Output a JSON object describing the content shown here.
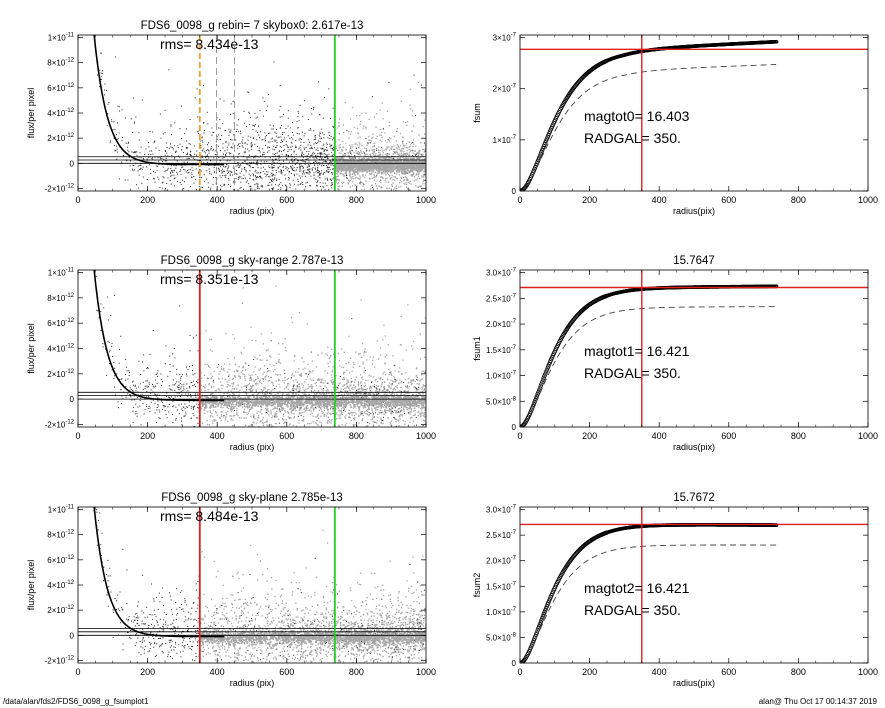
{
  "footer": {
    "left": "/data/alan/fds2/FDS6_0098_g_fsumplot1",
    "right": "alan@  Thu Oct 17 00:14:37 2019"
  },
  "colors": {
    "scatter_dark": "#222222",
    "scatter_light": "#a6a6a6",
    "red_line": "#e02020",
    "green_line": "#22cc22",
    "orange_line": "#f0a030",
    "dashed_gray": "#888888"
  },
  "chart_data": [
    {
      "type": "scatter",
      "title": "FDS6_0098_g rebin= 7    skybox0:  2.617e-13",
      "annotation": "rms= 8.434e-13",
      "xlabel": "radius (pix)",
      "ylabel": "flux/per pixel",
      "xlim": [
        0,
        1000
      ],
      "ylim": [
        -2.2e-12,
        1.02e-11
      ],
      "xticks": [
        {
          "v": 0,
          "t": "0"
        },
        {
          "v": 200,
          "t": "200"
        },
        {
          "v": 400,
          "t": "400"
        },
        {
          "v": 600,
          "t": "600"
        },
        {
          "v": 800,
          "t": "800"
        },
        {
          "v": 1000,
          "t": "1000"
        }
      ],
      "yticks": [
        {
          "v": -2e-12,
          "t": "-2×10",
          "e": "-12"
        },
        {
          "v": 0,
          "t": "0",
          "e": ""
        },
        {
          "v": 2e-12,
          "t": "2×10",
          "e": "-12"
        },
        {
          "v": 4e-12,
          "t": "4×10",
          "e": "-12"
        },
        {
          "v": 6e-12,
          "t": "6×10",
          "e": "-12"
        },
        {
          "v": 8e-12,
          "t": "8×10",
          "e": "-12"
        },
        {
          "v": 1e-11,
          "t": "1×10",
          "e": "-11"
        }
      ],
      "profile": {
        "amplitude": 3.5e-11,
        "scale": 38,
        "floor": -1e-13
      },
      "hlines": [
        0,
        2.617e-13,
        5.2e-13
      ],
      "vlines": [
        {
          "x": 350,
          "color": "orange",
          "style": "dashed"
        },
        {
          "x": 398,
          "color": "gray",
          "style": "dashed"
        },
        {
          "x": 450,
          "color": "gray",
          "style": "dashed"
        },
        {
          "x": 738,
          "color": "green",
          "style": "solid"
        }
      ],
      "light_segment_start": 738
    },
    {
      "type": "line",
      "title": "",
      "annotations": [
        "magtot0=  16.403",
        "RADGAL=    350."
      ],
      "xlabel": "radius(pix)",
      "ylabel": "fsum",
      "xlim": [
        0,
        1000
      ],
      "ylim": [
        0,
        3.05e-07
      ],
      "xticks": [
        {
          "v": 0,
          "t": "0"
        },
        {
          "v": 200,
          "t": "200"
        },
        {
          "v": 400,
          "t": "400"
        },
        {
          "v": 600,
          "t": "600"
        },
        {
          "v": 800,
          "t": "800"
        },
        {
          "v": 1000,
          "t": "1000"
        }
      ],
      "yticks": [
        {
          "v": 0,
          "t": "0",
          "e": ""
        },
        {
          "v": 1e-07,
          "t": "1×10",
          "e": "-7"
        },
        {
          "v": 2e-07,
          "t": "2×10",
          "e": "-7"
        },
        {
          "v": 3e-07,
          "t": "3×10",
          "e": "-7"
        }
      ],
      "curve": {
        "plateau": 2.77e-07,
        "scale": 60,
        "rmax": 738,
        "tail_slope": 3.4e-11
      },
      "dashed": {
        "plateau": 2.36e-07,
        "scale": 60,
        "rmax": 738,
        "tail_slope": 2.6e-11
      },
      "hline": 2.77e-07,
      "vline": 350
    },
    {
      "type": "scatter",
      "title": "FDS6_0098_g sky-range  2.787e-13",
      "annotation": "rms= 8.351e-13",
      "xlabel": "radius (pix)",
      "ylabel": "flux/per pixel",
      "xlim": [
        0,
        1000
      ],
      "ylim": [
        -2.2e-12,
        1.02e-11
      ],
      "xticks": [
        {
          "v": 0,
          "t": "0"
        },
        {
          "v": 200,
          "t": "200"
        },
        {
          "v": 400,
          "t": "400"
        },
        {
          "v": 600,
          "t": "600"
        },
        {
          "v": 800,
          "t": "800"
        },
        {
          "v": 1000,
          "t": "1000"
        }
      ],
      "yticks": [
        {
          "v": -2e-12,
          "t": "-2×10",
          "e": "-12"
        },
        {
          "v": 0,
          "t": "0",
          "e": ""
        },
        {
          "v": 2e-12,
          "t": "2×10",
          "e": "-12"
        },
        {
          "v": 4e-12,
          "t": "4×10",
          "e": "-12"
        },
        {
          "v": 6e-12,
          "t": "6×10",
          "e": "-12"
        },
        {
          "v": 8e-12,
          "t": "8×10",
          "e": "-12"
        },
        {
          "v": 1e-11,
          "t": "1×10",
          "e": "-11"
        }
      ],
      "profile": {
        "amplitude": 3.5e-11,
        "scale": 38,
        "floor": -1e-13
      },
      "hlines": [
        0,
        2.787e-13,
        5.4e-13
      ],
      "vlines": [
        {
          "x": 350,
          "color": "red",
          "style": "solid"
        },
        {
          "x": 738,
          "color": "green",
          "style": "solid"
        }
      ],
      "light_segment_start": 350
    },
    {
      "type": "line",
      "title": "15.7647",
      "annotations": [
        "magtot1=  16.421",
        "RADGAL=    350."
      ],
      "xlabel": "radius(pix)",
      "ylabel": "fsum1",
      "xlim": [
        0,
        1000
      ],
      "ylim": [
        0,
        3.05e-07
      ],
      "xticks": [
        {
          "v": 0,
          "t": "0"
        },
        {
          "v": 200,
          "t": "200"
        },
        {
          "v": 400,
          "t": "400"
        },
        {
          "v": 600,
          "t": "600"
        },
        {
          "v": 800,
          "t": "800"
        },
        {
          "v": 1000,
          "t": "1000"
        }
      ],
      "yticks": [
        {
          "v": 0,
          "t": "0",
          "e": ""
        },
        {
          "v": 5e-08,
          "t": "5.0×10",
          "e": "-8"
        },
        {
          "v": 1e-07,
          "t": "1.0×10",
          "e": "-7"
        },
        {
          "v": 1.5e-07,
          "t": "1.5×10",
          "e": "-7"
        },
        {
          "v": 2e-07,
          "t": "2.0×10",
          "e": "-7"
        },
        {
          "v": 2.5e-07,
          "t": "2.5×10",
          "e": "-7"
        },
        {
          "v": 3e-07,
          "t": "3.0×10",
          "e": "-7"
        }
      ],
      "curve": {
        "plateau": 2.71e-07,
        "scale": 55,
        "rmax": 738,
        "tail_slope": 5e-12
      },
      "dashed": {
        "plateau": 2.33e-07,
        "scale": 55,
        "rmax": 738,
        "tail_slope": 2e-12
      },
      "hline": 2.71e-07,
      "vline": 350
    },
    {
      "type": "scatter",
      "title": "FDS6_0098_g sky-plane  2.785e-13",
      "annotation": "rms= 8.484e-13",
      "xlabel": "radius (pix)",
      "ylabel": "flux/per pixel",
      "xlim": [
        0,
        1000
      ],
      "ylim": [
        -2.2e-12,
        1.02e-11
      ],
      "xticks": [
        {
          "v": 0,
          "t": "0"
        },
        {
          "v": 200,
          "t": "200"
        },
        {
          "v": 400,
          "t": "400"
        },
        {
          "v": 600,
          "t": "600"
        },
        {
          "v": 800,
          "t": "800"
        },
        {
          "v": 1000,
          "t": "1000"
        }
      ],
      "yticks": [
        {
          "v": -2e-12,
          "t": "-2×10",
          "e": "-12"
        },
        {
          "v": 0,
          "t": "0",
          "e": ""
        },
        {
          "v": 2e-12,
          "t": "2×10",
          "e": "-12"
        },
        {
          "v": 4e-12,
          "t": "4×10",
          "e": "-12"
        },
        {
          "v": 6e-12,
          "t": "6×10",
          "e": "-12"
        },
        {
          "v": 8e-12,
          "t": "8×10",
          "e": "-12"
        },
        {
          "v": 1e-11,
          "t": "1×10",
          "e": "-11"
        }
      ],
      "profile": {
        "amplitude": 3.5e-11,
        "scale": 38,
        "floor": -1e-13
      },
      "hlines": [
        0,
        2.785e-13,
        5.4e-13
      ],
      "vlines": [
        {
          "x": 350,
          "color": "red",
          "style": "solid"
        },
        {
          "x": 738,
          "color": "green",
          "style": "solid"
        }
      ],
      "light_segment_start": 350
    },
    {
      "type": "line",
      "title": "15.7672",
      "annotations": [
        "magtot2=  16.421",
        "RADGAL=    350."
      ],
      "xlabel": "radius(pix)",
      "ylabel": "fsum2",
      "xlim": [
        0,
        1000
      ],
      "ylim": [
        0,
        3.05e-07
      ],
      "xticks": [
        {
          "v": 0,
          "t": "0"
        },
        {
          "v": 200,
          "t": "200"
        },
        {
          "v": 400,
          "t": "400"
        },
        {
          "v": 600,
          "t": "600"
        },
        {
          "v": 800,
          "t": "800"
        },
        {
          "v": 1000,
          "t": "1000"
        }
      ],
      "yticks": [
        {
          "v": 0,
          "t": "0",
          "e": ""
        },
        {
          "v": 5e-08,
          "t": "5.0×10",
          "e": "-8"
        },
        {
          "v": 1e-07,
          "t": "1.0×10",
          "e": "-7"
        },
        {
          "v": 1.5e-07,
          "t": "1.5×10",
          "e": "-7"
        },
        {
          "v": 2e-07,
          "t": "2.0×10",
          "e": "-7"
        },
        {
          "v": 2.5e-07,
          "t": "2.5×10",
          "e": "-7"
        },
        {
          "v": 3e-07,
          "t": "3.0×10",
          "e": "-7"
        }
      ],
      "curve": {
        "plateau": 2.71e-07,
        "scale": 55,
        "rmax": 738,
        "tail_slope": -3e-12
      },
      "dashed": {
        "plateau": 2.31e-07,
        "scale": 55,
        "rmax": 738,
        "tail_slope": -1e-12
      },
      "hline": 2.71e-07,
      "vline": 350
    }
  ]
}
